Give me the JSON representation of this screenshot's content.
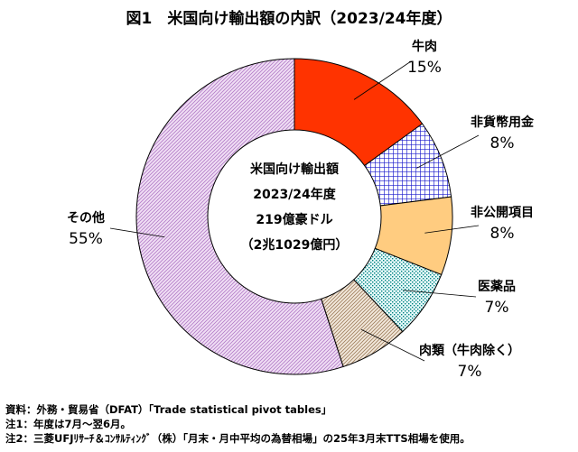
{
  "chart_data": {
    "type": "pie",
    "title": "図1　米国向け輸出額の内訳（2023/24年度）",
    "center_label": [
      "米国向け輸出額",
      "2023/24年度",
      "219億豪ドル",
      "（2兆1029億円）"
    ],
    "slices": [
      {
        "name": "牛肉",
        "value": 15,
        "label": "15%",
        "color": "#ff3300",
        "pattern": "solid"
      },
      {
        "name": "非貨幣用金",
        "value": 8,
        "label": "8%",
        "color": "#1a1acc",
        "pattern": "grid"
      },
      {
        "name": "非公開項目",
        "value": 8,
        "label": "8%",
        "color": "#ffcc80",
        "pattern": "solid"
      },
      {
        "name": "医薬品",
        "value": 7,
        "label": "7%",
        "color": "#008080",
        "pattern": "dots"
      },
      {
        "name": "肉類（牛肉除く）",
        "value": 7,
        "label": "7%",
        "color": "#c8a880",
        "pattern": "diagonal"
      },
      {
        "name": "その他",
        "value": 55,
        "label": "55%",
        "color": "#cc99dd",
        "pattern": "diagonal"
      }
    ]
  },
  "notes": [
    "資料：外務・貿易省（DFAT）「Trade statistical pivot tables」",
    "注1：年度は7月～翌6月。",
    "注2：三菱UFJﾘｻｰﾁ＆ｺﾝｻﾙﾃｨﾝｸﾞ（株）「月末・月中平均の為替相場」の25年3月末TTS相場を使用。"
  ]
}
